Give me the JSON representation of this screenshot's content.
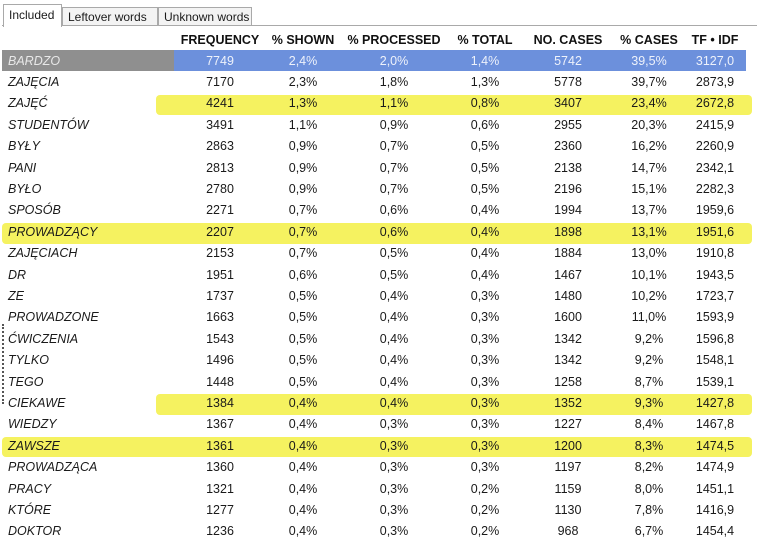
{
  "tabs": [
    "Included",
    "Leftover words",
    "Unknown words"
  ],
  "columns": [
    "",
    "FREQUENCY",
    "% SHOWN",
    "% PROCESSED",
    "% TOTAL",
    "NO. CASES",
    "% CASES",
    "TF • IDF"
  ],
  "rows": [
    [
      "BARDZO",
      "7749",
      "2,4%",
      "2,0%",
      "1,4%",
      "5742",
      "39,5%",
      "3127,0"
    ],
    [
      "ZAJĘCIA",
      "7170",
      "2,3%",
      "1,8%",
      "1,3%",
      "5778",
      "39,7%",
      "2873,9"
    ],
    [
      "ZAJĘĆ",
      "4241",
      "1,3%",
      "1,1%",
      "0,8%",
      "3407",
      "23,4%",
      "2672,8"
    ],
    [
      "STUDENTÓW",
      "3491",
      "1,1%",
      "0,9%",
      "0,6%",
      "2955",
      "20,3%",
      "2415,9"
    ],
    [
      "BYŁY",
      "2863",
      "0,9%",
      "0,7%",
      "0,5%",
      "2360",
      "16,2%",
      "2260,9"
    ],
    [
      "PANI",
      "2813",
      "0,9%",
      "0,7%",
      "0,5%",
      "2138",
      "14,7%",
      "2342,1"
    ],
    [
      "BYŁO",
      "2780",
      "0,9%",
      "0,7%",
      "0,5%",
      "2196",
      "15,1%",
      "2282,3"
    ],
    [
      "SPOSÓB",
      "2271",
      "0,7%",
      "0,6%",
      "0,4%",
      "1994",
      "13,7%",
      "1959,6"
    ],
    [
      "PROWADZĄCY",
      "2207",
      "0,7%",
      "0,6%",
      "0,4%",
      "1898",
      "13,1%",
      "1951,6"
    ],
    [
      "ZAJĘCIACH",
      "2153",
      "0,7%",
      "0,5%",
      "0,4%",
      "1884",
      "13,0%",
      "1910,8"
    ],
    [
      "DR",
      "1951",
      "0,6%",
      "0,5%",
      "0,4%",
      "1467",
      "10,1%",
      "1943,5"
    ],
    [
      "ZE",
      "1737",
      "0,5%",
      "0,4%",
      "0,3%",
      "1480",
      "10,2%",
      "1723,7"
    ],
    [
      "PROWADZONE",
      "1663",
      "0,5%",
      "0,4%",
      "0,3%",
      "1600",
      "11,0%",
      "1593,9"
    ],
    [
      "ĆWICZENIA",
      "1543",
      "0,5%",
      "0,4%",
      "0,3%",
      "1342",
      "9,2%",
      "1596,8"
    ],
    [
      "TYLKO",
      "1496",
      "0,5%",
      "0,4%",
      "0,3%",
      "1342",
      "9,2%",
      "1548,1"
    ],
    [
      "TEGO",
      "1448",
      "0,5%",
      "0,4%",
      "0,3%",
      "1258",
      "8,7%",
      "1539,1"
    ],
    [
      "CIEKAWE",
      "1384",
      "0,4%",
      "0,4%",
      "0,3%",
      "1352",
      "9,3%",
      "1427,8"
    ],
    [
      "WIEDZY",
      "1367",
      "0,4%",
      "0,3%",
      "0,3%",
      "1227",
      "8,4%",
      "1467,8"
    ],
    [
      "ZAWSZE",
      "1361",
      "0,4%",
      "0,3%",
      "0,3%",
      "1200",
      "8,3%",
      "1474,5"
    ],
    [
      "PROWADZĄCA",
      "1360",
      "0,4%",
      "0,3%",
      "0,3%",
      "1197",
      "8,2%",
      "1474,9"
    ],
    [
      "PRACY",
      "1321",
      "0,4%",
      "0,3%",
      "0,2%",
      "1159",
      "8,0%",
      "1451,1"
    ],
    [
      "KTÓRE",
      "1277",
      "0,4%",
      "0,3%",
      "0,2%",
      "1130",
      "7,8%",
      "1416,9"
    ],
    [
      "DOKTOR",
      "1236",
      "0,4%",
      "0,3%",
      "0,2%",
      "968",
      "6,7%",
      "1454,4"
    ]
  ],
  "selected_row": 0,
  "highlighted_rows": [
    2,
    8,
    16,
    18
  ],
  "colors": {
    "selection": "#6c90dc",
    "selection_label": "#8f8f8f",
    "highlighter": "#f3f044"
  }
}
